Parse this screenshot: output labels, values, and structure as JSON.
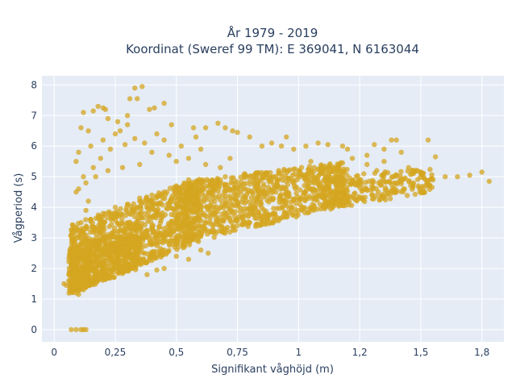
{
  "chart_data": {
    "type": "scatter",
    "title_line1": "År 1979 - 2019",
    "title_line2": "Koordinat (Sweref 99 TM): E 369041, N 6163044",
    "xlabel": "Signifikant våghöjd (m)",
    "ylabel": "Vågperiod (s)",
    "xlim": [
      -0.05,
      1.84
    ],
    "ylim": [
      -0.4,
      8.3
    ],
    "x_ticks": [
      0,
      0.25,
      0.5,
      0.75,
      1,
      1.25,
      1.5,
      1.75
    ],
    "x_tick_labels": [
      "0",
      "0,25",
      "0,5",
      "0,75",
      "1",
      "1,2",
      "1,5",
      "1,8"
    ],
    "y_ticks": [
      0,
      1,
      2,
      3,
      4,
      5,
      6,
      7,
      8
    ],
    "y_tick_labels": [
      "0",
      "1",
      "2",
      "3",
      "4",
      "5",
      "6",
      "7",
      "8"
    ],
    "grid": true,
    "marker_color": "#d4a520",
    "plot_bg": "#e5ecf6",
    "points": [
      [
        0.07,
        0
      ],
      [
        0.09,
        0
      ],
      [
        0.11,
        0
      ],
      [
        0.13,
        0
      ],
      [
        0.12,
        0
      ],
      [
        0.04,
        1.5
      ],
      [
        0.05,
        1.45
      ],
      [
        0.06,
        1.6
      ],
      [
        0.07,
        1.55
      ],
      [
        0.18,
        7.3
      ],
      [
        0.2,
        7.25
      ],
      [
        0.21,
        7.2
      ],
      [
        0.12,
        7.1
      ],
      [
        0.16,
        7.15
      ],
      [
        0.22,
        6.9
      ],
      [
        0.33,
        7.9
      ],
      [
        0.36,
        7.95
      ],
      [
        0.31,
        7.55
      ],
      [
        0.34,
        7.55
      ],
      [
        0.39,
        7.2
      ],
      [
        0.41,
        7.25
      ],
      [
        0.45,
        7.4
      ],
      [
        0.3,
        7.0
      ],
      [
        0.26,
        6.8
      ],
      [
        0.14,
        6.5
      ],
      [
        0.11,
        6.6
      ],
      [
        0.1,
        5.8
      ],
      [
        0.09,
        5.5
      ],
      [
        0.12,
        5.0
      ],
      [
        0.1,
        4.6
      ],
      [
        0.09,
        4.5
      ],
      [
        0.15,
        6.0
      ],
      [
        0.27,
        6.5
      ],
      [
        0.48,
        6.7
      ],
      [
        0.57,
        6.6
      ],
      [
        0.62,
        6.6
      ],
      [
        0.67,
        6.75
      ],
      [
        0.7,
        6.6
      ],
      [
        0.73,
        6.5
      ],
      [
        0.75,
        6.45
      ],
      [
        0.58,
        6.3
      ],
      [
        0.52,
        6.0
      ],
      [
        0.45,
        6.2
      ],
      [
        0.8,
        6.3
      ],
      [
        0.85,
        6.0
      ],
      [
        0.89,
        6.1
      ],
      [
        0.93,
        6.0
      ],
      [
        0.95,
        6.3
      ],
      [
        0.98,
        5.9
      ],
      [
        1.03,
        6.0
      ],
      [
        1.08,
        6.1
      ],
      [
        1.12,
        6.05
      ],
      [
        1.18,
        6.0
      ],
      [
        1.2,
        5.9
      ],
      [
        1.22,
        5.6
      ],
      [
        1.28,
        5.7
      ],
      [
        1.31,
        6.05
      ],
      [
        1.35,
        5.9
      ],
      [
        1.38,
        6.2
      ],
      [
        1.4,
        6.2
      ],
      [
        1.42,
        5.8
      ],
      [
        1.45,
        5.3
      ],
      [
        1.47,
        5.1
      ],
      [
        1.52,
        4.9
      ],
      [
        1.53,
        6.2
      ],
      [
        1.56,
        5.65
      ],
      [
        1.55,
        4.9
      ],
      [
        1.6,
        5.0
      ],
      [
        1.65,
        5.0
      ],
      [
        1.7,
        5.05
      ],
      [
        1.75,
        5.15
      ],
      [
        1.78,
        4.85
      ],
      [
        1.47,
        4.8
      ],
      [
        1.49,
        4.7
      ],
      [
        1.5,
        4.6
      ],
      [
        1.43,
        4.6
      ],
      [
        1.4,
        4.5
      ],
      [
        1.36,
        4.4
      ],
      [
        1.3,
        4.4
      ],
      [
        1.25,
        4.3
      ],
      [
        1.2,
        4.2
      ],
      [
        1.15,
        4.1
      ],
      [
        1.1,
        4.0
      ],
      [
        1.05,
        3.95
      ],
      [
        1.0,
        3.9
      ],
      [
        0.95,
        3.8
      ],
      [
        0.9,
        3.7
      ],
      [
        0.85,
        3.6
      ],
      [
        0.8,
        3.5
      ],
      [
        0.75,
        3.4
      ],
      [
        0.7,
        3.3
      ],
      [
        0.65,
        3.2
      ],
      [
        0.6,
        3.05
      ],
      [
        0.55,
        2.95
      ],
      [
        0.5,
        2.8
      ],
      [
        0.45,
        2.6
      ],
      [
        0.4,
        2.45
      ],
      [
        0.35,
        2.3
      ],
      [
        0.3,
        2.15
      ],
      [
        0.25,
        2.0
      ],
      [
        0.2,
        1.8
      ],
      [
        0.15,
        1.55
      ],
      [
        0.12,
        1.3
      ],
      [
        0.1,
        1.15
      ],
      [
        0.09,
        1.2
      ],
      [
        0.42,
        1.95
      ],
      [
        0.38,
        1.8
      ],
      [
        0.45,
        2.0
      ],
      [
        0.5,
        2.4
      ],
      [
        0.55,
        2.3
      ],
      [
        0.6,
        2.6
      ],
      [
        0.63,
        2.5
      ],
      [
        1.3,
        4.7
      ],
      [
        1.25,
        4.8
      ],
      [
        1.2,
        4.85
      ],
      [
        1.15,
        4.9
      ],
      [
        1.32,
        5.2
      ],
      [
        1.28,
        5.4
      ],
      [
        1.35,
        5.5
      ],
      [
        1.05,
        5.5
      ],
      [
        1.0,
        5.2
      ],
      [
        1.12,
        5.3
      ],
      [
        1.18,
        5.45
      ],
      [
        0.78,
        5.1
      ],
      [
        0.7,
        5.0
      ],
      [
        0.6,
        4.8
      ],
      [
        0.55,
        4.9
      ],
      [
        0.5,
        4.7
      ],
      [
        0.45,
        4.5
      ],
      [
        0.4,
        4.4
      ],
      [
        0.35,
        4.3
      ],
      [
        0.3,
        4.1
      ],
      [
        0.25,
        4.0
      ],
      [
        0.2,
        3.8
      ],
      [
        0.15,
        3.6
      ],
      [
        0.6,
        5.9
      ],
      [
        0.55,
        5.6
      ],
      [
        0.5,
        5.5
      ],
      [
        0.47,
        5.7
      ],
      [
        0.4,
        5.8
      ],
      [
        0.35,
        5.4
      ],
      [
        0.28,
        5.3
      ],
      [
        0.22,
        5.2
      ],
      [
        0.17,
        5.0
      ],
      [
        0.13,
        4.8
      ],
      [
        0.2,
        6.2
      ],
      [
        0.25,
        6.4
      ],
      [
        0.3,
        6.7
      ],
      [
        0.42,
        6.4
      ],
      [
        0.37,
        6.1
      ],
      [
        0.33,
        6.25
      ],
      [
        0.29,
        6.05
      ],
      [
        0.23,
        5.9
      ],
      [
        0.19,
        5.6
      ],
      [
        0.16,
        5.3
      ],
      [
        0.14,
        4.2
      ],
      [
        0.13,
        3.9
      ],
      [
        0.11,
        3.5
      ],
      [
        0.1,
        3.0
      ],
      [
        0.09,
        2.7
      ],
      [
        0.08,
        2.4
      ],
      [
        0.07,
        2.1
      ],
      [
        0.06,
        1.8
      ],
      [
        0.08,
        1.7
      ],
      [
        0.1,
        1.9
      ],
      [
        0.65,
        4.3
      ],
      [
        0.7,
        4.5
      ],
      [
        0.75,
        4.6
      ],
      [
        0.82,
        4.8
      ],
      [
        0.88,
        4.9
      ],
      [
        0.92,
        5.1
      ],
      [
        0.96,
        4.95
      ],
      [
        1.02,
        5.05
      ],
      [
        1.08,
        4.75
      ],
      [
        0.68,
        5.3
      ],
      [
        0.72,
        5.6
      ],
      [
        0.62,
        5.4
      ]
    ],
    "density_bands": [
      {
        "x0": 0.06,
        "x1": 0.6,
        "ylo0": 1.15,
        "ylo1": 2.9,
        "yhi0": 3.4,
        "yhi1": 5.0,
        "n": 900
      },
      {
        "x0": 0.5,
        "x1": 1.2,
        "ylo0": 2.7,
        "ylo1": 4.1,
        "yhi0": 4.8,
        "yhi1": 5.5,
        "n": 900
      },
      {
        "x0": 1.1,
        "x1": 1.55,
        "ylo0": 3.9,
        "ylo1": 4.5,
        "yhi0": 5.0,
        "yhi1": 5.3,
        "n": 250
      },
      {
        "x0": 0.07,
        "x1": 0.35,
        "ylo0": 1.2,
        "ylo1": 2.0,
        "yhi0": 2.6,
        "yhi1": 3.5,
        "n": 500
      }
    ]
  }
}
